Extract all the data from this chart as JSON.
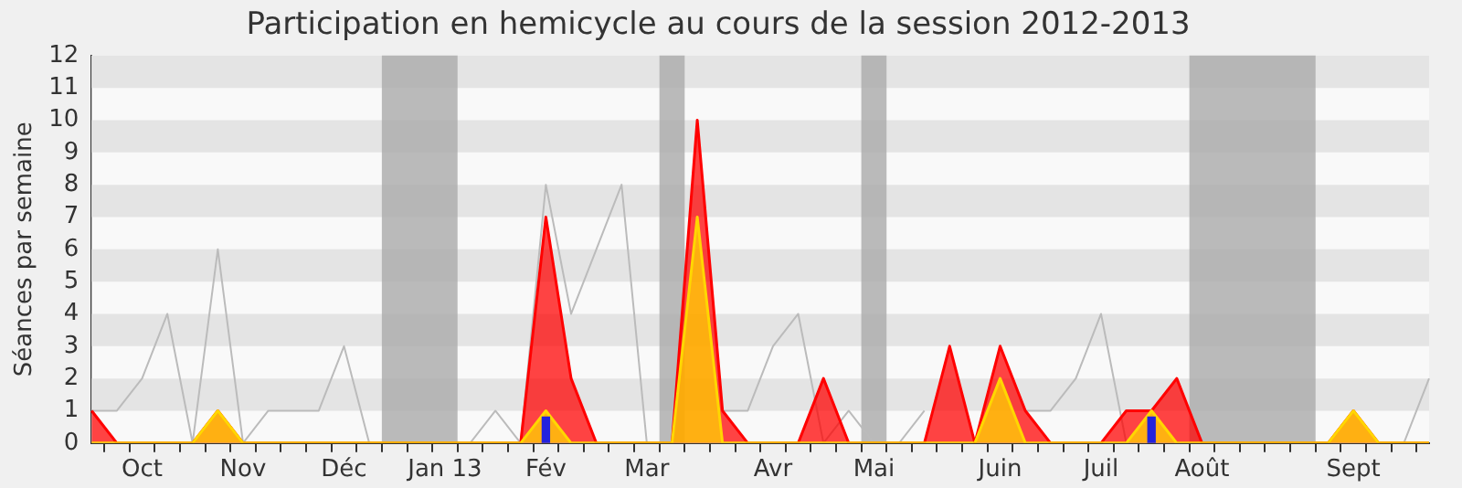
{
  "chart_data": {
    "type": "area",
    "title": "Participation en hemicycle au cours de la session 2012-2013",
    "ylabel": "Séances par semaine",
    "categories": [
      null,
      null,
      "Oct",
      null,
      null,
      null,
      "Nov",
      null,
      null,
      null,
      "Déc",
      null,
      null,
      null,
      "Jan 13",
      null,
      null,
      null,
      "Fév",
      null,
      null,
      null,
      "Mar",
      null,
      null,
      null,
      null,
      "Avr",
      null,
      null,
      null,
      "Mai",
      null,
      null,
      null,
      null,
      "Juin",
      null,
      null,
      null,
      "Juil",
      null,
      null,
      null,
      "Août",
      null,
      null,
      null,
      null,
      null,
      "Sept",
      null,
      null,
      null
    ],
    "ylim": [
      0,
      12
    ],
    "yticks": [
      0,
      1,
      2,
      3,
      4,
      5,
      6,
      7,
      8,
      9,
      10,
      11,
      12
    ],
    "legend": false,
    "marker": "none",
    "series": [
      {
        "type": "line",
        "color": "#bbbbbb",
        "values": [
          1,
          1,
          2,
          4,
          0,
          6,
          0,
          1,
          1,
          1,
          3,
          0,
          null,
          null,
          null,
          0,
          1,
          0,
          8,
          4,
          6,
          8,
          0,
          null,
          null,
          1,
          1,
          3,
          4,
          0,
          1,
          0,
          0,
          1,
          null,
          null,
          null,
          1,
          1,
          2,
          4,
          0,
          null,
          null,
          null,
          null,
          null,
          null,
          null,
          null,
          null,
          0,
          0,
          2
        ]
      },
      {
        "color": "#ff0000",
        "values": [
          1,
          0,
          0,
          0,
          0,
          1,
          0,
          0,
          0,
          0,
          0,
          0,
          0,
          0,
          0,
          0,
          0,
          0,
          7,
          2,
          0,
          0,
          0,
          0,
          10,
          1,
          0,
          0,
          0,
          2,
          0,
          0,
          0,
          0,
          3,
          0,
          3,
          1,
          0,
          0,
          0,
          1,
          1,
          2,
          0,
          0,
          0,
          0,
          0,
          0,
          1,
          0,
          0,
          0
        ]
      },
      {
        "color": "#ffd700",
        "values": [
          0,
          0,
          0,
          0,
          0,
          1,
          0,
          0,
          0,
          0,
          0,
          0,
          0,
          0,
          0,
          0,
          0,
          0,
          1,
          0,
          0,
          0,
          0,
          0,
          7,
          0,
          0,
          0,
          0,
          0,
          0,
          0,
          0,
          0,
          0,
          0,
          2,
          0,
          0,
          0,
          0,
          0,
          1,
          0,
          0,
          0,
          0,
          0,
          0,
          0,
          1,
          0,
          0,
          0
        ]
      },
      {
        "type": "bar",
        "color": "#2222dd",
        "values": [
          null,
          null,
          null,
          null,
          null,
          null,
          null,
          null,
          null,
          null,
          null,
          null,
          null,
          null,
          null,
          null,
          null,
          null,
          0.8,
          null,
          null,
          null,
          null,
          null,
          null,
          null,
          null,
          null,
          null,
          null,
          null,
          null,
          null,
          null,
          null,
          null,
          null,
          null,
          null,
          null,
          null,
          null,
          0.8,
          null,
          null,
          null,
          null,
          null,
          null,
          null,
          null,
          null,
          null,
          null
        ]
      }
    ]
  }
}
